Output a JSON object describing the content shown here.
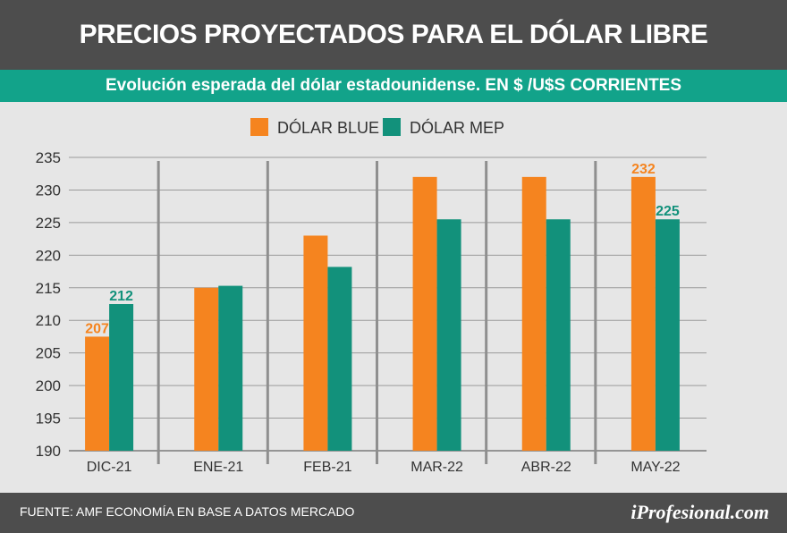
{
  "header": {
    "title": "PRECIOS PROYECTADOS PARA EL DÓLAR LIBRE",
    "subtitle": "Evolución esperada del dólar estadounidense. EN $ /U$S CORRIENTES"
  },
  "footer": {
    "source": "FUENTE:  AMF ECONOMÍA EN BASE A DATOS MERCADO",
    "logo": "iProfesional.com"
  },
  "colors": {
    "blue_series": "#f5841f",
    "mep_series": "#12917b",
    "header_bg": "#4d4d4d",
    "subheader_bg": "#12a38a"
  },
  "chart_data": {
    "type": "bar",
    "title": "PRECIOS PROYECTADOS PARA EL DÓLAR LIBRE",
    "subtitle": "Evolución esperada del dólar estadounidense. EN $ /U$S CORRIENTES",
    "categories": [
      "DIC-21",
      "ENE-21",
      "FEB-21",
      "MAR-22",
      "ABR-22",
      "MAY-22"
    ],
    "series": [
      {
        "name": "DÓLAR BLUE",
        "color": "#f5841f",
        "values": [
          207.5,
          215,
          223,
          232,
          232,
          232
        ],
        "data_labels": [
          "207",
          "",
          "",
          "",
          "",
          "232"
        ]
      },
      {
        "name": "DÓLAR MEP",
        "color": "#12917b",
        "values": [
          212.5,
          215.3,
          218.2,
          225.5,
          225.5,
          225.5
        ],
        "data_labels": [
          "212",
          "",
          "",
          "",
          "",
          "225"
        ]
      }
    ],
    "yticks": [
      "235",
      "230",
      "225",
      "220",
      "215",
      "210",
      "205",
      "200",
      "195",
      "190"
    ],
    "ylim": [
      190,
      235
    ],
    "xlabel": "",
    "ylabel": "",
    "legend_position": "top-center",
    "grid": true
  }
}
